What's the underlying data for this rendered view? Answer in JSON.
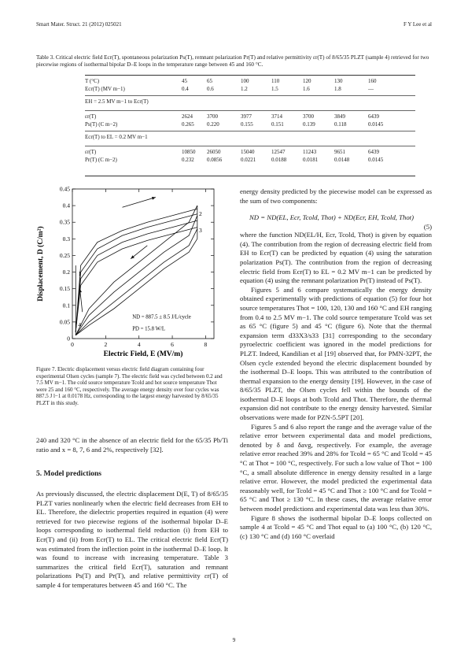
{
  "header": {
    "left": "Smart Mater. Struct. 21 (2012) 025021",
    "right": "F Y Lee et al"
  },
  "table3": {
    "caption": "Table 3. Critical electric field Ecr(T), spontaneous polarization Ps(T), remnant polarization Pr(T) and relative permittivity εr(T) of 8/65/35 PLZT (sample 4) retrieved for two piecewise regions of isothermal bipolar D–E loops in the temperature range between 45 and 160 °C.",
    "rows": [
      {
        "label": "T (°C)",
        "values": [
          "45",
          "65",
          "100",
          "110",
          "120",
          "130",
          "160"
        ]
      },
      {
        "label": "Ecr(T) (MV m−1)",
        "values": [
          "0.4",
          "0.6",
          "1.2",
          "1.5",
          "1.6",
          "1.8",
          "—"
        ]
      },
      {
        "label": "εr(T)",
        "values": [
          "2624",
          "3700",
          "3977",
          "3714",
          "3700",
          "3849",
          "6439"
        ]
      },
      {
        "label": "Ps(T) (C m−2)",
        "values": [
          "0.265",
          "0.220",
          "0.155",
          "0.151",
          "0.139",
          "0.118",
          "0.0145"
        ]
      },
      {
        "label": "εr(T)",
        "values": [
          "10850",
          "26050",
          "15040",
          "12547",
          "11243",
          "9651",
          "6439"
        ]
      },
      {
        "label": "Pr(T) (C m−2)",
        "values": [
          "0.232",
          "0.0856",
          "0.0221",
          "0.0188",
          "0.0181",
          "0.0148",
          "0.0145"
        ]
      }
    ],
    "section1": "EH = 2.5 MV m−1 to Ecr(T)",
    "section2": "Ecr(T) to EL = 0.2 MV m−1"
  },
  "chart_data": {
    "type": "line",
    "xlabel": "Electric Field, E (MV/m)",
    "ylabel": "Displacement, D (C/m²)",
    "xlim": [
      0,
      8.5
    ],
    "ylim": [
      0,
      0.45
    ],
    "xticks": [
      "0",
      "2",
      "4",
      "6",
      "8"
    ],
    "yticks": [
      "0",
      "0.05",
      "0.1",
      "0.15",
      "0.2",
      "0.25",
      "0.3",
      "0.35",
      "0.4",
      "0.45"
    ],
    "annotations": [
      "ND = 887.5 ± 8.5 J/L/cycle",
      "PD = 15.8 W/L"
    ],
    "corner_labels": [
      "1",
      "2",
      "3",
      "4"
    ],
    "series": [
      {
        "x": [
          0.2,
          0.5,
          1.5,
          3,
          4.5,
          6,
          7.5
        ],
        "y": [
          0.02,
          0.22,
          0.29,
          0.325,
          0.35,
          0.37,
          0.39
        ]
      },
      {
        "x": [
          0.2,
          0.5,
          1.5,
          3,
          4.5,
          6,
          7.5
        ],
        "y": [
          0.02,
          0.2,
          0.27,
          0.31,
          0.335,
          0.355,
          0.375
        ]
      },
      {
        "x": [
          0.2,
          0.5,
          1.5,
          3,
          4.5,
          6,
          7.5
        ],
        "y": [
          0.02,
          0.18,
          0.25,
          0.29,
          0.315,
          0.335,
          0.355
        ]
      },
      {
        "x": [
          0.2,
          0.5,
          1.5,
          3,
          4.5,
          6,
          7.5
        ],
        "y": [
          0.02,
          0.16,
          0.23,
          0.27,
          0.295,
          0.315,
          0.335
        ]
      },
      {
        "x": [
          0.2,
          1,
          2.5,
          4,
          5.5,
          7,
          7.5
        ],
        "y": [
          0.01,
          0.09,
          0.17,
          0.23,
          0.29,
          0.35,
          0.4
        ]
      },
      {
        "x": [
          0.2,
          1,
          2.5,
          4,
          5.5,
          7,
          7.5
        ],
        "y": [
          0.01,
          0.07,
          0.14,
          0.2,
          0.26,
          0.31,
          0.37
        ]
      },
      {
        "x": [
          0.2,
          1,
          2.5,
          4,
          5.5,
          7,
          7.5
        ],
        "y": [
          0.01,
          0.05,
          0.11,
          0.17,
          0.23,
          0.28,
          0.33
        ]
      },
      {
        "x": [
          0.2,
          1,
          2.5,
          4,
          5.5,
          7,
          7.5
        ],
        "y": [
          0.01,
          0.04,
          0.09,
          0.15,
          0.21,
          0.26,
          0.3
        ]
      }
    ]
  },
  "figure7_caption": "Figure 7. Electric displacement versus electric field diagram containing four experimental Olsen cycles (sample 7). The electric field was cycled between 0.2 and 7.5 MV m−1. The cold source temperature Tcold and hot source temperature Thot were 25 and 160 °C, respectively. The average energy density over four cycles was 887.5 J l−1 at 0.0178 Hz, corresponding to the largest energy harvested by 8/65/35 PLZT in this study.",
  "left_top": "240 and 320 °C in the absence of an electric field for the 65/35 Pb/Ti ratio and x = 8, 7, 6 and 2%, respectively [32].",
  "section_title": "5. Model predictions",
  "left_body": "As previously discussed, the electric displacement D(E, T) of 8/65/35 PLZT varies nonlinearly when the electric field decreases from EH to EL. Therefore, the dielectric properties required in equation (4) were retrieved for two piecewise regions of the isothermal bipolar D–E loops corresponding to isothermal field reduction (i) from EH to Ecr(T) and (ii) from Ecr(T) to EL. The critical electric field Ecr(T) was estimated from the inflection point in the isothermal D–E loop. It was found to increase with increasing temperature. Table 3 summarizes the critical field Ecr(T), saturation and remnant polarizations Ps(T) and Pr(T), and relative permittivity εr(T) of sample 4 for temperatures between 45 and 160 °C. The",
  "right_p1": "energy density predicted by the piecewise model can be expressed as the sum of two components:",
  "equation": "ND = ND(EL, Ecr, Tcold, Thot) + ND(Ecr, EH, Tcold, Thot)",
  "equation_number": "(5)",
  "right_p2": "where the function ND(EL/H, Ecr, Tcold, Thot) is given by equation (4). The contribution from the region of decreasing electric field from EH to Ecr(T) can be predicted by equation (4) using the saturation polarization Ps(T). The contribution from the region of decreasing electric field from Ecr(T) to EL = 0.2 MV m−1 can be predicted by equation (4) using the remnant polarization Pr(T) instead of Ps(T).",
  "right_p3": "Figures 5 and 6 compare systematically the energy density obtained experimentally with predictions of equation (5) for four hot source temperatures Thot = 100, 120, 130 and 160 °C and EH ranging from 0.4 to 2.5 MV m−1. The cold source temperature Tcold was set as 65 °C (figure 5) and 45 °C (figure 6). Note that the thermal expansion term d33X3/s33 [31] corresponding to the secondary pyroelectric coefficient was ignored in the model predictions for PLZT. Indeed, Kandilian et al [19] observed that, for PMN-32PT, the Olsen cycle extended beyond the electric displacement bounded by the isothermal D–E loops. This was attributed to the contribution of thermal expansion to the energy density [19]. However, in the case of 8/65/35 PLZT, the Olsen cycles fell within the bounds of the isothermal D–E loops at both Tcold and Thot. Therefore, the thermal expansion did not contribute to the energy density harvested. Similar observations were made for PZN-5.5PT [20].",
  "right_p4": "Figures 5 and 6 also report the range and the average value of the relative error between experimental data and model predictions, denoted by δ and δavg, respectively. For example, the average relative error reached 39% and 28% for Tcold = 65 °C and Tcold = 45 °C at Thot = 100 °C, respectively. For such a low value of Thot = 100 °C, a small absolute difference in energy density resulted in a large relative error. However, the model predicted the experimental data reasonably well, for Tcold = 45 °C and Thot ≥ 100 °C and for Tcold = 65 °C and Thot ≥ 130 °C. In these cases, the average relative error between model predictions and experimental data was less than 30%.",
  "right_p5": "Figure 8 shows the isothermal bipolar D–E loops collected on sample 4 at Tcold = 45 °C and Thot equal to (a) 100 °C, (b) 120 °C, (c) 130 °C and (d) 160 °C overlaid",
  "page_number": "9",
  "colors": {
    "text": "#1a1a1a",
    "line": "#111111"
  }
}
